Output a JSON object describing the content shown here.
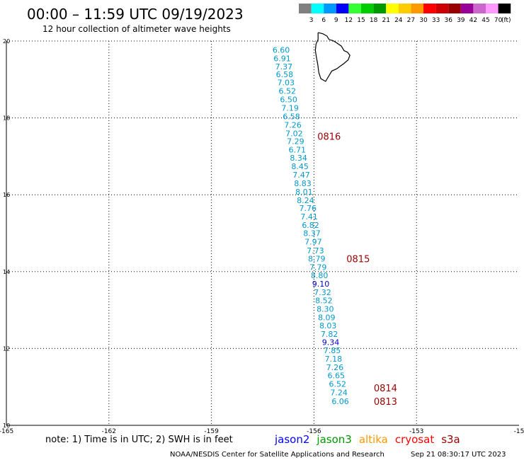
{
  "header": {
    "title": "00:00 – 11:59 UTC 09/19/2023",
    "subtitle": "12 hour collection of altimeter wave heights"
  },
  "legend": {
    "unit": "(ft)",
    "bins": [
      {
        "label": "3",
        "color": "#808080"
      },
      {
        "label": "6",
        "color": "#00ffff"
      },
      {
        "label": "9",
        "color": "#0099ff"
      },
      {
        "label": "12",
        "color": "#0000ff"
      },
      {
        "label": "15",
        "color": "#33ff33"
      },
      {
        "label": "18",
        "color": "#00cc00"
      },
      {
        "label": "21",
        "color": "#009900"
      },
      {
        "label": "24",
        "color": "#ffff00"
      },
      {
        "label": "27",
        "color": "#ffcc00"
      },
      {
        "label": "30",
        "color": "#ff9900"
      },
      {
        "label": "33",
        "color": "#ff0000"
      },
      {
        "label": "36",
        "color": "#cc0000"
      },
      {
        "label": "39",
        "color": "#990000"
      },
      {
        "label": "42",
        "color": "#990099"
      },
      {
        "label": "45",
        "color": "#cc66cc"
      },
      {
        "label": "70",
        "color": "#ff99ff"
      },
      {
        "label": "",
        "color": "#000000"
      }
    ]
  },
  "footer": {
    "note": "note: 1) Time is in UTC; 2) SWH is in feet",
    "sources": [
      {
        "name": "jason2",
        "color": "#0000ff"
      },
      {
        "name": "jason3",
        "color": "#009900"
      },
      {
        "name": "altika",
        "color": "#ff9900"
      },
      {
        "name": "cryosat",
        "color": "#ff0000"
      },
      {
        "name": "s3a",
        "color": "#990000"
      }
    ],
    "credit": "NOAA/NESDIS Center for Satellite Applications and Research",
    "timestamp": "Sep 21 08:30:17 UTC 2023"
  },
  "chart_data": {
    "type": "scatter",
    "title": "",
    "xlabel": "",
    "ylabel": "",
    "xlim": [
      -165,
      -150
    ],
    "ylim": [
      10,
      20
    ],
    "grid": true,
    "x_ticks": [
      "-165",
      "-162",
      "-159",
      "-156",
      "-153",
      "-15"
    ],
    "y_ticks": [
      "20",
      "18",
      "16",
      "14",
      "12",
      "10"
    ],
    "series": [
      {
        "color": "#0099cc",
        "points": [
          {
            "x": -156.96,
            "y": 19.77,
            "label": "6.60"
          },
          {
            "x": -156.93,
            "y": 19.55,
            "label": "6.91"
          },
          {
            "x": -156.88,
            "y": 19.34,
            "label": "7.37"
          },
          {
            "x": -156.86,
            "y": 19.13,
            "label": "6.58"
          },
          {
            "x": -156.82,
            "y": 18.92,
            "label": "7.03"
          },
          {
            "x": -156.78,
            "y": 18.7,
            "label": "6.52"
          },
          {
            "x": -156.74,
            "y": 18.48,
            "label": "6.50"
          },
          {
            "x": -156.7,
            "y": 18.26,
            "label": "7.19"
          },
          {
            "x": -156.66,
            "y": 18.04,
            "label": "6.58"
          },
          {
            "x": -156.62,
            "y": 17.82,
            "label": "7.26"
          },
          {
            "x": -156.58,
            "y": 17.6,
            "label": "7.02"
          },
          {
            "x": -156.54,
            "y": 17.39,
            "label": "7.29"
          },
          {
            "x": -156.49,
            "y": 17.17,
            "label": "6.71"
          },
          {
            "x": -156.45,
            "y": 16.96,
            "label": "8.34"
          },
          {
            "x": -156.41,
            "y": 16.74,
            "label": "8.45"
          },
          {
            "x": -156.37,
            "y": 16.52,
            "label": "7.47"
          },
          {
            "x": -156.33,
            "y": 16.3,
            "label": "8.83"
          },
          {
            "x": -156.29,
            "y": 16.08,
            "label": "8.01"
          },
          {
            "x": -156.25,
            "y": 15.86,
            "label": "8.24"
          },
          {
            "x": -156.18,
            "y": 15.65,
            "label": "7.76"
          },
          {
            "x": -156.14,
            "y": 15.43,
            "label": "7.41"
          },
          {
            "x": -156.1,
            "y": 15.21,
            "label": "6.82"
          },
          {
            "x": -156.06,
            "y": 15.0,
            "label": "8.37"
          },
          {
            "x": -156.02,
            "y": 14.78,
            "label": "7.97"
          },
          {
            "x": -155.96,
            "y": 14.55,
            "label": "7.73"
          },
          {
            "x": -155.92,
            "y": 14.34,
            "label": "8.79"
          },
          {
            "x": -155.88,
            "y": 14.12,
            "label": "7.79"
          },
          {
            "x": -155.84,
            "y": 13.9,
            "label": "8.80"
          },
          {
            "x": -155.75,
            "y": 13.46,
            "label": "7.32"
          },
          {
            "x": -155.71,
            "y": 13.25,
            "label": "8.52"
          },
          {
            "x": -155.67,
            "y": 13.03,
            "label": "8.30"
          },
          {
            "x": -155.63,
            "y": 12.81,
            "label": "8.09"
          },
          {
            "x": -155.59,
            "y": 12.6,
            "label": "8.03"
          },
          {
            "x": -155.55,
            "y": 12.38,
            "label": "7.82"
          },
          {
            "x": -155.47,
            "y": 11.95,
            "label": "7.85"
          },
          {
            "x": -155.43,
            "y": 11.73,
            "label": "7.18"
          },
          {
            "x": -155.39,
            "y": 11.51,
            "label": "7.26"
          },
          {
            "x": -155.35,
            "y": 11.3,
            "label": "6.65"
          },
          {
            "x": -155.31,
            "y": 11.08,
            "label": "6.52"
          },
          {
            "x": -155.27,
            "y": 10.86,
            "label": "7.24"
          },
          {
            "x": -155.23,
            "y": 10.63,
            "label": "6.06"
          }
        ]
      },
      {
        "color": "#0000cc",
        "points": [
          {
            "x": -155.8,
            "y": 13.68,
            "label": "9.10"
          },
          {
            "x": -155.51,
            "y": 12.16,
            "label": "9.34"
          }
        ]
      }
    ],
    "annotations": [
      {
        "x": -155.9,
        "y": 17.52,
        "text": "0816",
        "color": "#990000"
      },
      {
        "x": -155.05,
        "y": 14.34,
        "text": "0815",
        "color": "#990000"
      },
      {
        "x": -154.25,
        "y": 10.98,
        "text": "0814",
        "color": "#990000"
      },
      {
        "x": -154.25,
        "y": 10.63,
        "text": "0813",
        "color": "#990000"
      }
    ],
    "coastline": [
      [
        -155.88,
        20.22
      ],
      [
        -155.74,
        20.19
      ],
      [
        -155.62,
        20.13
      ],
      [
        -155.56,
        20.04
      ],
      [
        -155.44,
        20.01
      ],
      [
        -155.33,
        19.95
      ],
      [
        -155.2,
        19.87
      ],
      [
        -155.12,
        19.75
      ],
      [
        -155.02,
        19.71
      ],
      [
        -154.95,
        19.63
      ],
      [
        -155.0,
        19.51
      ],
      [
        -155.13,
        19.41
      ],
      [
        -155.24,
        19.34
      ],
      [
        -155.33,
        19.28
      ],
      [
        -155.48,
        19.22
      ],
      [
        -155.56,
        19.1
      ],
      [
        -155.66,
        18.95
      ],
      [
        -155.8,
        19.02
      ],
      [
        -155.86,
        19.18
      ],
      [
        -155.89,
        19.4
      ],
      [
        -155.93,
        19.58
      ],
      [
        -155.96,
        19.76
      ],
      [
        -155.94,
        19.92
      ],
      [
        -155.88,
        20.04
      ],
      [
        -155.88,
        20.22
      ]
    ]
  }
}
